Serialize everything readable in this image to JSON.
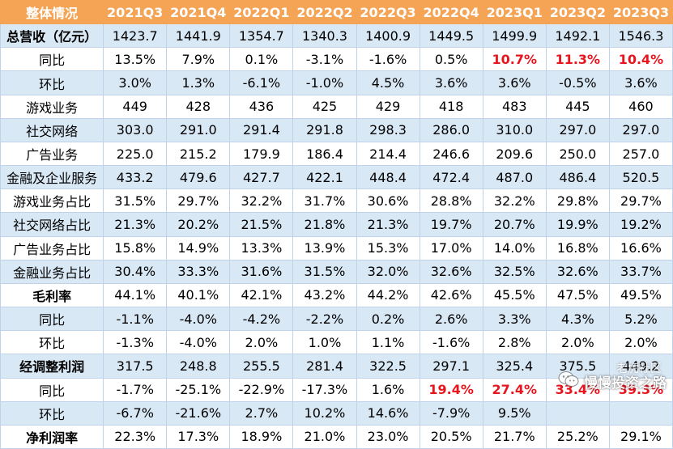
{
  "table": {
    "header": [
      "整体情况",
      "2021Q3",
      "2021Q4",
      "2022Q1",
      "2022Q2",
      "2022Q3",
      "2022Q4",
      "2023Q1",
      "2023Q2",
      "2023Q3"
    ],
    "rows": [
      {
        "label": "总营收（亿元）",
        "bold": true,
        "values": [
          "1423.7",
          "1441.9",
          "1354.7",
          "1340.3",
          "1400.9",
          "1449.5",
          "1499.9",
          "1492.1",
          "1546.3"
        ],
        "highlight": []
      },
      {
        "label": "同比",
        "bold": false,
        "values": [
          "13.5%",
          "7.9%",
          "0.1%",
          "-3.1%",
          "-1.6%",
          "0.5%",
          "10.7%",
          "11.3%",
          "10.4%"
        ],
        "highlight": [
          6,
          7,
          8
        ]
      },
      {
        "label": "环比",
        "bold": false,
        "values": [
          "3.0%",
          "1.3%",
          "-6.1%",
          "-1.0%",
          "4.5%",
          "3.6%",
          "3.6%",
          "-0.5%",
          "3.6%"
        ],
        "highlight": []
      },
      {
        "label": "游戏业务",
        "bold": false,
        "values": [
          "449",
          "428",
          "436",
          "425",
          "429",
          "418",
          "483",
          "445",
          "460"
        ],
        "highlight": []
      },
      {
        "label": "社交网络",
        "bold": false,
        "values": [
          "303.0",
          "291.0",
          "291.4",
          "291.8",
          "298.3",
          "286.0",
          "310.0",
          "297.0",
          "297.0"
        ],
        "highlight": []
      },
      {
        "label": "广告业务",
        "bold": false,
        "values": [
          "225.0",
          "215.2",
          "179.9",
          "186.4",
          "214.4",
          "246.6",
          "209.6",
          "250.0",
          "257.0"
        ],
        "highlight": []
      },
      {
        "label": "金融及企业服务",
        "bold": false,
        "values": [
          "433.2",
          "479.6",
          "427.7",
          "422.1",
          "448.4",
          "472.4",
          "487.0",
          "486.4",
          "520.5"
        ],
        "highlight": []
      },
      {
        "label": "游戏业务占比",
        "bold": false,
        "values": [
          "31.5%",
          "29.7%",
          "32.2%",
          "31.7%",
          "30.6%",
          "28.8%",
          "32.2%",
          "29.8%",
          "29.7%"
        ],
        "highlight": []
      },
      {
        "label": "社交网络占比",
        "bold": false,
        "values": [
          "21.3%",
          "20.2%",
          "21.5%",
          "21.8%",
          "21.3%",
          "19.7%",
          "20.7%",
          "19.9%",
          "19.2%"
        ],
        "highlight": []
      },
      {
        "label": "广告业务占比",
        "bold": false,
        "values": [
          "15.8%",
          "14.9%",
          "13.3%",
          "13.9%",
          "15.3%",
          "17.0%",
          "14.0%",
          "16.8%",
          "16.6%"
        ],
        "highlight": []
      },
      {
        "label": "金融业务占比",
        "bold": false,
        "values": [
          "30.4%",
          "33.3%",
          "31.6%",
          "31.5%",
          "32.0%",
          "32.6%",
          "32.5%",
          "32.6%",
          "33.7%"
        ],
        "highlight": []
      },
      {
        "label": "毛利率",
        "bold": true,
        "values": [
          "44.1%",
          "40.1%",
          "42.1%",
          "43.2%",
          "44.2%",
          "42.6%",
          "45.5%",
          "47.5%",
          "49.5%"
        ],
        "highlight": []
      },
      {
        "label": "同比",
        "bold": false,
        "values": [
          "-1.1%",
          "-4.0%",
          "-4.2%",
          "-2.2%",
          "0.2%",
          "2.6%",
          "3.3%",
          "4.3%",
          "5.2%"
        ],
        "highlight": []
      },
      {
        "label": "环比",
        "bold": false,
        "values": [
          "-1.3%",
          "-4.0%",
          "2.0%",
          "1.0%",
          "1.1%",
          "-1.6%",
          "2.8%",
          "2.0%",
          "2.0%"
        ],
        "highlight": []
      },
      {
        "label": "经调整利润",
        "bold": true,
        "values": [
          "317.5",
          "248.8",
          "255.5",
          "281.4",
          "322.5",
          "297.1",
          "325.4",
          "375.5",
          "449.2"
        ],
        "highlight": []
      },
      {
        "label": "同比",
        "bold": false,
        "values": [
          "-1.7%",
          "-25.1%",
          "-22.9%",
          "-17.3%",
          "1.6%",
          "19.4%",
          "27.4%",
          "33.4%",
          "39.3%"
        ],
        "highlight": [
          5,
          6,
          7,
          8
        ]
      },
      {
        "label": "环比",
        "bold": false,
        "values": [
          "-6.7%",
          "-21.6%",
          "2.7%",
          "10.2%",
          "14.6%",
          "-7.9%",
          "9.5%",
          "",
          ""
        ],
        "highlight": []
      },
      {
        "label": "净利润率",
        "bold": true,
        "values": [
          "22.3%",
          "17.3%",
          "18.9%",
          "21.0%",
          "23.0%",
          "20.5%",
          "21.7%",
          "25.2%",
          "29.1%"
        ],
        "highlight": []
      }
    ]
  },
  "watermark": {
    "text": "慢慢投资之路",
    "top_text": "老虎社区",
    "icon": "wechat-icon"
  },
  "colors": {
    "header_bg": "#f5a455",
    "header_text": "#ffffff",
    "stripe": "#d9e8f5",
    "highlight": "#e8141e"
  }
}
